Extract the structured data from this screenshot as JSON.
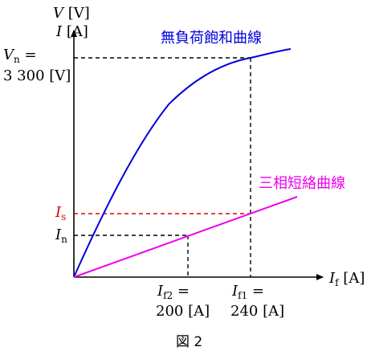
{
  "axis": {
    "y_label_voltage": "V [V]",
    "y_label_current": "I [A]",
    "x_label": "If [A]"
  },
  "labels": {
    "vn_line1": "Vn =",
    "vn_line2": "3 300 [V]",
    "is": "Is",
    "in": "In",
    "if2_line1": "If2 =",
    "if2_line2": "200 [A]",
    "if1_line1": "If1 =",
    "if1_line2": "240 [A]"
  },
  "curves": {
    "no_load": {
      "label": "無負荷飽和曲線",
      "color": "#0000dd"
    },
    "short_circuit": {
      "label": "三相短絡曲線",
      "color": "#ee00ee"
    }
  },
  "colors": {
    "is_color": "#dd0000",
    "axis_color": "#000000"
  },
  "caption": "図 2"
}
